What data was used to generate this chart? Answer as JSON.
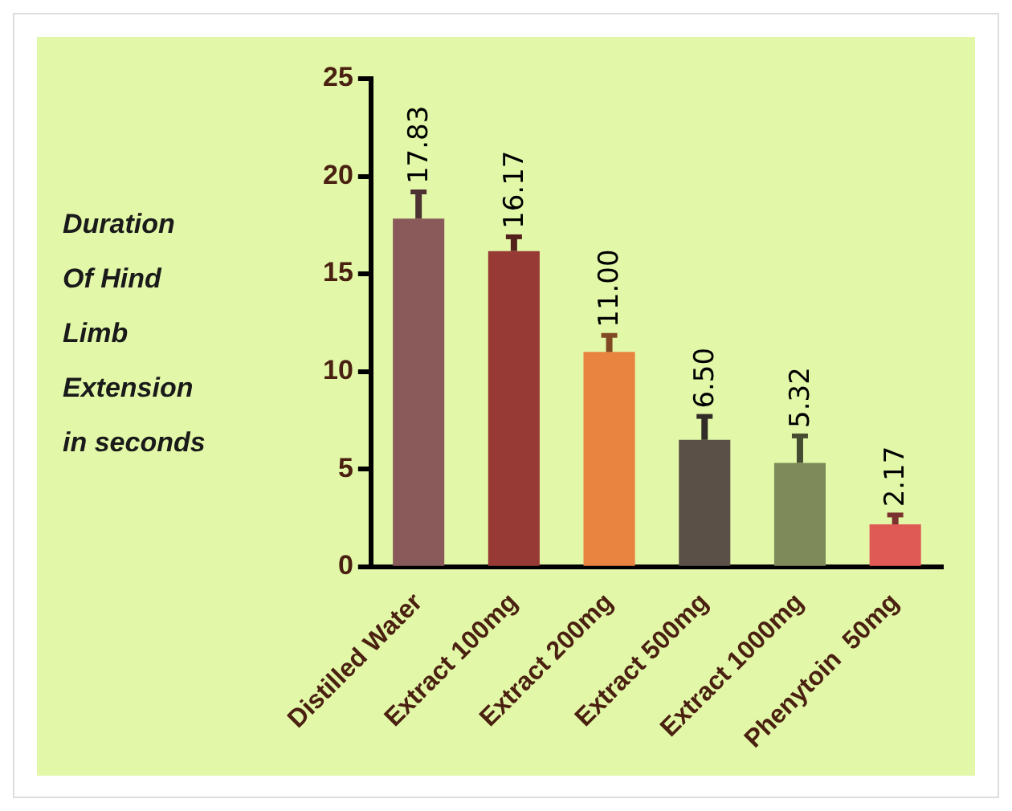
{
  "chart_data": {
    "type": "bar",
    "ylabel": "Duration Of Hind Limb Extension in seconds",
    "categories": [
      "Distilled Water",
      "Extract 100mg",
      "Extract 200mg",
      "Extract 500mg",
      "Extract 1000mg",
      "Phenytoin  50mg"
    ],
    "values": [
      17.83,
      16.17,
      11.0,
      6.5,
      5.32,
      2.17
    ],
    "value_labels": [
      "17.83",
      "16.17",
      "11.00",
      "6.50",
      "5.32",
      "2.17"
    ],
    "errors": [
      [
        17.83,
        19.2
      ],
      [
        16.17,
        16.9
      ],
      [
        11.0,
        11.85
      ],
      [
        6.5,
        7.7
      ],
      [
        5.32,
        6.7
      ],
      [
        2.17,
        2.65
      ]
    ],
    "colors": [
      "#8a5a5a",
      "#973a36",
      "#e8843f",
      "#5a5048",
      "#7f8a5a",
      "#e05a55"
    ],
    "ylim": [
      0,
      25
    ],
    "yticks": [
      0,
      5,
      10,
      15,
      20,
      25
    ],
    "grid": false,
    "legend": false
  }
}
